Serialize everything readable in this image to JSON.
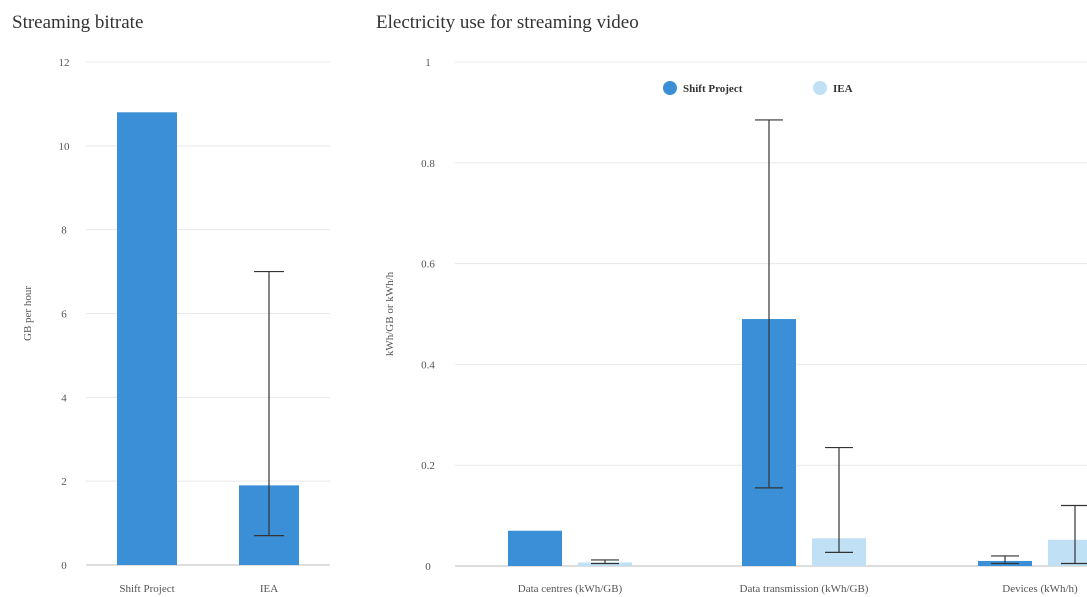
{
  "chart_data": [
    {
      "type": "bar",
      "title": "Streaming bitrate",
      "ylabel": "GB per hour",
      "xlabel": "",
      "ylim": [
        0,
        12
      ],
      "yticks": [
        0,
        2,
        4,
        6,
        8,
        10,
        12
      ],
      "categories": [
        "Shift Project",
        "IEA"
      ],
      "values": [
        10.8,
        1.9
      ],
      "error_low": [
        null,
        0.7
      ],
      "error_high": [
        null,
        7.0
      ],
      "color": "#3a8fd6",
      "grid": true,
      "legend": "none"
    },
    {
      "type": "bar",
      "title": "Electricity use for streaming video",
      "ylabel": "kWh/GB or kWh/h",
      "xlabel": "",
      "ylim": [
        0,
        1
      ],
      "yticks": [
        0,
        0.2,
        0.4,
        0.6,
        0.8,
        1
      ],
      "categories": [
        "Data centres (kWh/GB)",
        "Data transmission (kWh/GB)",
        "Devices (kWh/h)"
      ],
      "series": [
        {
          "name": "Shift Project",
          "color": "#3a8fd6",
          "values": [
            0.07,
            0.49,
            0.01
          ],
          "error_low": [
            null,
            0.155,
            0.005
          ],
          "error_high": [
            null,
            0.885,
            0.02
          ]
        },
        {
          "name": "IEA",
          "color": "#bfe0f5",
          "values": [
            0.007,
            0.055,
            0.052
          ],
          "error_low": [
            0.005,
            0.027,
            0.005
          ],
          "error_high": [
            0.012,
            0.235,
            0.12
          ]
        }
      ],
      "grid": true,
      "legend": "top-center"
    }
  ]
}
